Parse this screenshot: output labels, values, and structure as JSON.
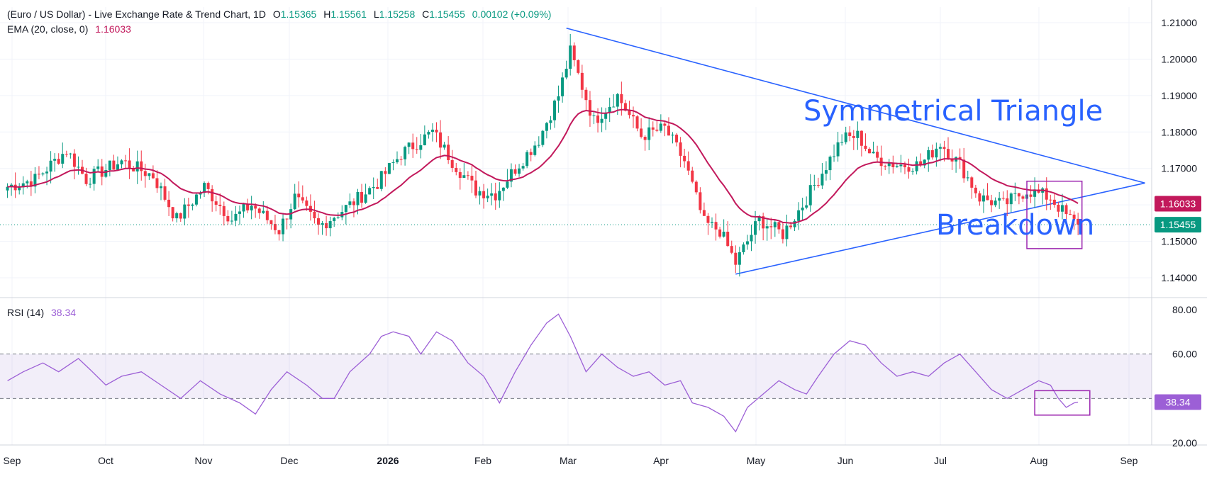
{
  "legend": {
    "symbol": "(Euro / US Dollar) - Live Exchange Rate & Trend Chart, 1D",
    "o_label": "O",
    "o_value": "1.15365",
    "h_label": "H",
    "h_value": "1.15561",
    "l_label": "L",
    "l_value": "1.15258",
    "c_label": "C",
    "c_value": "1.15455",
    "change": "0.00102 (+0.09%)",
    "ema_label": "EMA (20, close, 0)",
    "ema_value": "1.16033",
    "rsi_label": "RSI (14)",
    "rsi_value": "38.34"
  },
  "annotations": {
    "triangle_label": "Symmetrical Triangle",
    "breakdown_label": "Breakdown"
  },
  "colors": {
    "up": "#089981",
    "down": "#f23645",
    "ema": "#c2185b",
    "trendline": "#2962ff",
    "rsi": "#9c5fd6",
    "box": "#9c27b0"
  },
  "chart_data": [
    {
      "type": "candlestick",
      "title": "(Euro / US Dollar) - Live Exchange Rate & Trend Chart, 1D",
      "x_labels": [
        "Sep",
        "Oct",
        "Nov",
        "Dec",
        "2026",
        "Feb",
        "Mar",
        "Apr",
        "May",
        "Jun",
        "Jul",
        "Aug",
        "Sep"
      ],
      "y_ticks": [
        "1.21000",
        "1.20000",
        "1.19000",
        "1.18000",
        "1.17000",
        "1.16000",
        "1.15000",
        "1.14000"
      ],
      "ylim": [
        1.135,
        1.2125
      ],
      "last_price": 1.15455,
      "ema_last": 1.16033,
      "close_approx": [
        [
          1,
          1.165
        ],
        [
          8,
          1.167
        ],
        [
          16,
          1.175
        ],
        [
          21,
          1.167
        ],
        [
          30,
          1.172
        ],
        [
          38,
          1.168
        ],
        [
          44,
          1.156
        ],
        [
          51,
          1.165
        ],
        [
          58,
          1.156
        ],
        [
          63,
          1.16
        ],
        [
          70,
          1.153
        ],
        [
          74,
          1.162
        ],
        [
          80,
          1.154
        ],
        [
          88,
          1.16
        ],
        [
          95,
          1.166
        ],
        [
          101,
          1.174
        ],
        [
          109,
          1.18
        ],
        [
          114,
          1.172
        ],
        [
          120,
          1.164
        ],
        [
          125,
          1.163
        ],
        [
          130,
          1.17
        ],
        [
          136,
          1.178
        ],
        [
          141,
          1.19
        ],
        [
          144,
          1.202
        ],
        [
          150,
          1.183
        ],
        [
          156,
          1.19
        ],
        [
          162,
          1.179
        ],
        [
          168,
          1.181
        ],
        [
          173,
          1.172
        ],
        [
          178,
          1.155
        ],
        [
          182,
          1.153
        ],
        [
          186,
          1.144
        ],
        [
          192,
          1.156
        ],
        [
          198,
          1.152
        ],
        [
          203,
          1.16
        ],
        [
          208,
          1.169
        ],
        [
          213,
          1.178
        ],
        [
          217,
          1.179
        ],
        [
          221,
          1.173
        ],
        [
          227,
          1.171
        ],
        [
          233,
          1.171
        ],
        [
          238,
          1.177
        ],
        [
          243,
          1.171
        ],
        [
          248,
          1.162
        ],
        [
          254,
          1.16
        ],
        [
          260,
          1.164
        ],
        [
          266,
          1.162
        ],
        [
          270,
          1.157
        ],
        [
          273,
          1.1545
        ]
      ],
      "trendlines": [
        {
          "name": "upper",
          "points": [
            [
              143,
              1.2085
            ],
            [
              290,
              1.166
            ]
          ]
        },
        {
          "name": "lower",
          "points": [
            [
              186,
              1.141
            ],
            [
              290,
              1.166
            ]
          ]
        }
      ]
    },
    {
      "type": "line",
      "title": "RSI (14)",
      "y_ticks": [
        "80.00",
        "60.00",
        "20.00"
      ],
      "ylim": [
        20,
        80
      ],
      "band": [
        40,
        60
      ],
      "last_value": 38.34,
      "points": [
        [
          1,
          48
        ],
        [
          5,
          52
        ],
        [
          10,
          56
        ],
        [
          14,
          52
        ],
        [
          19,
          58
        ],
        [
          22,
          53
        ],
        [
          26,
          46
        ],
        [
          30,
          50
        ],
        [
          35,
          52
        ],
        [
          40,
          46
        ],
        [
          45,
          40
        ],
        [
          50,
          48
        ],
        [
          55,
          42
        ],
        [
          60,
          38
        ],
        [
          64,
          33
        ],
        [
          68,
          44
        ],
        [
          72,
          52
        ],
        [
          77,
          46
        ],
        [
          81,
          40
        ],
        [
          84,
          40
        ],
        [
          88,
          52
        ],
        [
          93,
          60
        ],
        [
          96,
          68
        ],
        [
          99,
          70
        ],
        [
          103,
          68
        ],
        [
          106,
          60
        ],
        [
          110,
          70
        ],
        [
          114,
          66
        ],
        [
          118,
          56
        ],
        [
          122,
          50
        ],
        [
          126,
          38
        ],
        [
          130,
          52
        ],
        [
          134,
          64
        ],
        [
          138,
          74
        ],
        [
          141,
          78
        ],
        [
          144,
          68
        ],
        [
          148,
          52
        ],
        [
          152,
          60
        ],
        [
          156,
          54
        ],
        [
          160,
          50
        ],
        [
          164,
          52
        ],
        [
          168,
          46
        ],
        [
          172,
          48
        ],
        [
          175,
          38
        ],
        [
          179,
          36
        ],
        [
          183,
          32
        ],
        [
          186,
          25
        ],
        [
          189,
          36
        ],
        [
          193,
          42
        ],
        [
          197,
          48
        ],
        [
          201,
          44
        ],
        [
          204,
          42
        ],
        [
          207,
          50
        ],
        [
          211,
          60
        ],
        [
          215,
          66
        ],
        [
          219,
          64
        ],
        [
          223,
          56
        ],
        [
          227,
          50
        ],
        [
          231,
          52
        ],
        [
          235,
          50
        ],
        [
          239,
          56
        ],
        [
          243,
          60
        ],
        [
          247,
          52
        ],
        [
          251,
          44
        ],
        [
          255,
          40
        ],
        [
          259,
          44
        ],
        [
          263,
          48
        ],
        [
          266,
          46
        ],
        [
          268,
          40
        ],
        [
          270,
          36
        ],
        [
          272,
          38
        ],
        [
          273,
          38.34
        ]
      ]
    }
  ]
}
